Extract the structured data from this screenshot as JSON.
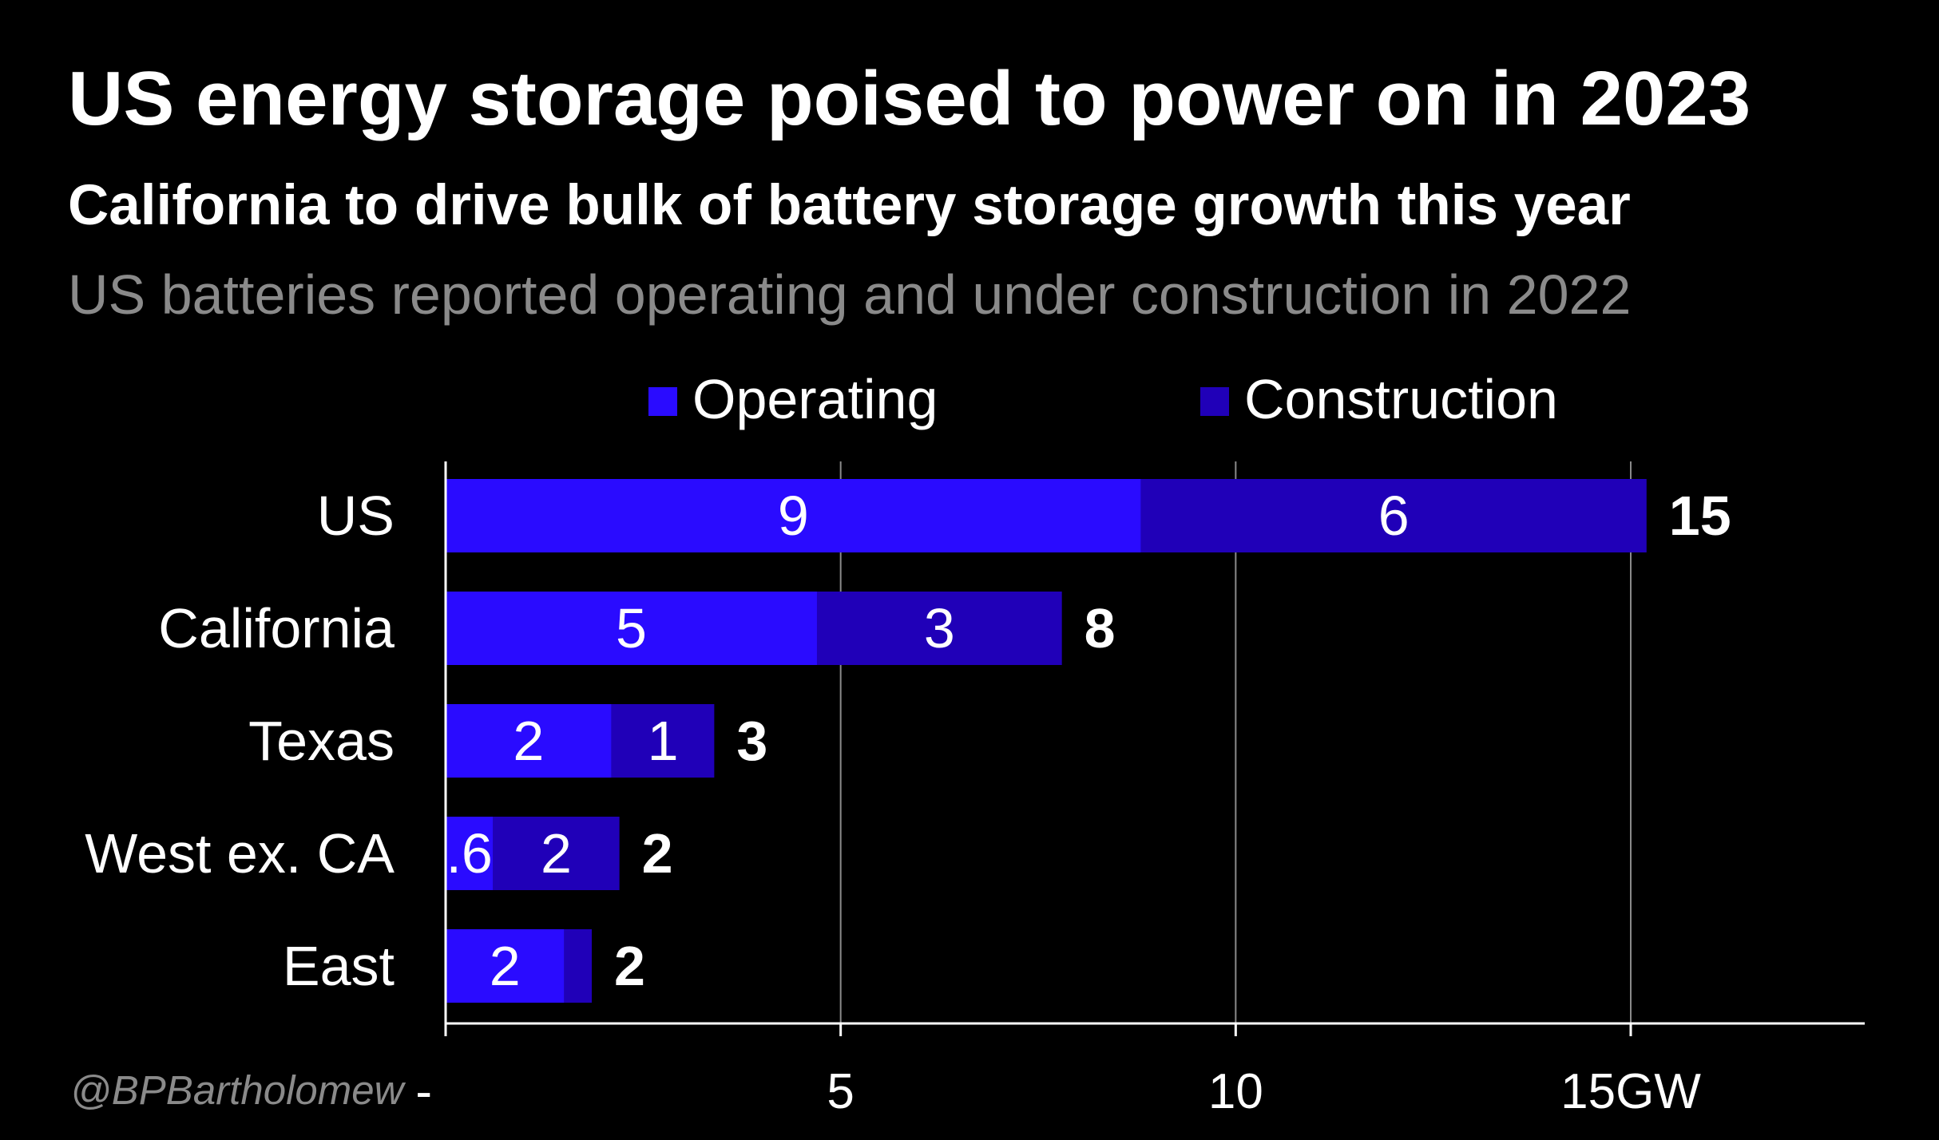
{
  "title": "US energy storage poised to power on in 2023",
  "subtitle": "California to drive bulk of battery storage growth this year",
  "description": "US batteries reported operating and under construction in 2022",
  "credit": "@BPBartholomew",
  "colors": {
    "background": "#000000",
    "operating": "#2a0bff",
    "construction": "#2000b8",
    "text": "#ffffff",
    "muted": "#8a8a8a",
    "grid": "#8a8a8a"
  },
  "chart_data": {
    "type": "bar",
    "orientation": "horizontal",
    "stacked": true,
    "categories": [
      "US",
      "California",
      "Texas",
      "West ex. CA",
      "East"
    ],
    "series": [
      {
        "name": "Operating",
        "values": [
          8.8,
          4.7,
          2.1,
          0.6,
          1.5
        ],
        "labels": [
          "9",
          "5",
          "2",
          ".6",
          "2"
        ]
      },
      {
        "name": "Construction",
        "values": [
          6.4,
          3.1,
          1.3,
          1.6,
          0.35
        ],
        "labels": [
          "6",
          "3",
          "1",
          "2",
          ""
        ]
      }
    ],
    "totals": [
      "15",
      "8",
      "3",
      "2",
      "2"
    ],
    "xlim": [
      0,
      18
    ],
    "xticks": [
      0,
      5,
      10,
      15
    ],
    "xtick_labels": [
      "-",
      "5",
      "10",
      "15GW"
    ],
    "grid": true,
    "legend_position": "top"
  }
}
